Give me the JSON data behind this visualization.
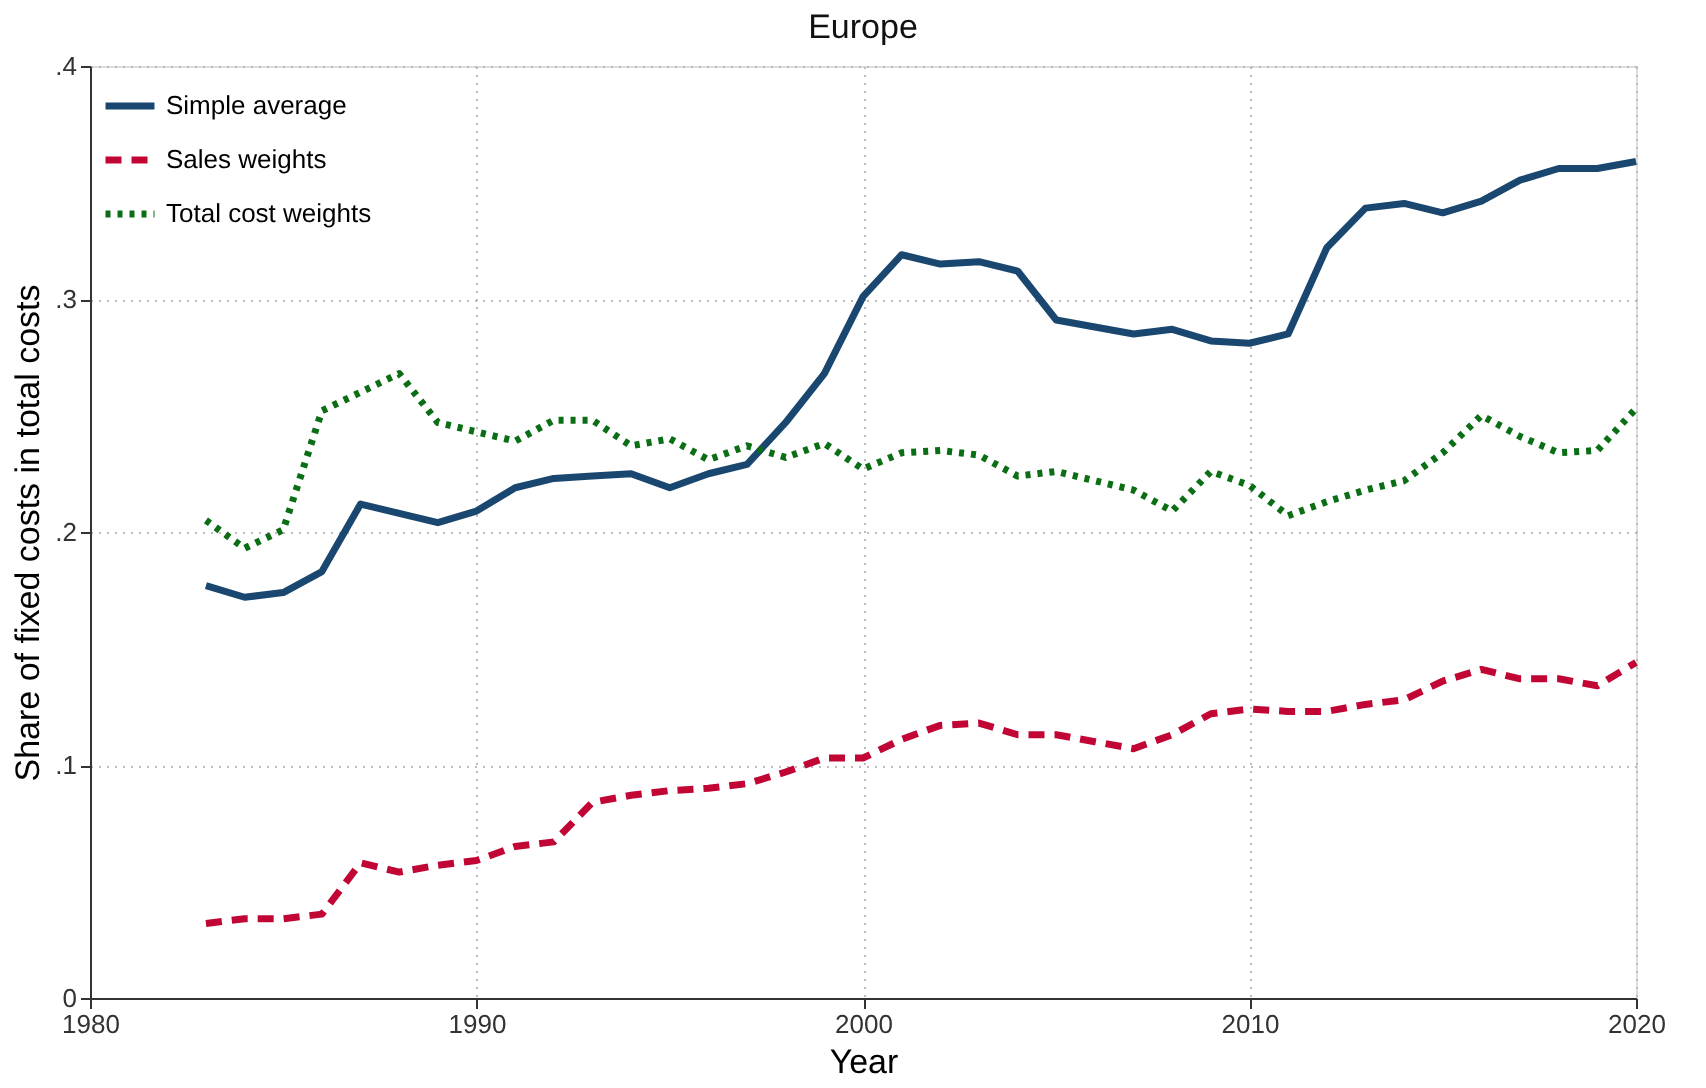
{
  "chart_data": {
    "type": "line",
    "title": "Europe",
    "xlabel": "Year",
    "ylabel": "Share of fixed costs in total costs",
    "x": [
      1983,
      1984,
      1985,
      1986,
      1987,
      1988,
      1989,
      1990,
      1991,
      1992,
      1993,
      1994,
      1995,
      1996,
      1997,
      1998,
      1999,
      2000,
      2001,
      2002,
      2003,
      2004,
      2005,
      2006,
      2007,
      2008,
      2009,
      2010,
      2011,
      2012,
      2013,
      2014,
      2015,
      2016,
      2017,
      2018,
      2019,
      2020
    ],
    "series": [
      {
        "name": "Simple average",
        "color": "#1a476f",
        "line_style": "solid",
        "values": [
          0.177,
          0.172,
          0.174,
          0.183,
          0.212,
          0.208,
          0.204,
          0.209,
          0.219,
          0.223,
          0.224,
          0.225,
          0.219,
          0.225,
          0.229,
          0.247,
          0.268,
          0.301,
          0.319,
          0.315,
          0.316,
          0.312,
          0.291,
          0.288,
          0.285,
          0.287,
          0.282,
          0.281,
          0.285,
          0.322,
          0.339,
          0.341,
          0.337,
          0.342,
          0.351,
          0.356,
          0.356,
          0.359
        ]
      },
      {
        "name": "Sales weights",
        "color": "#c10534",
        "line_style": "dashed",
        "values": [
          0.032,
          0.034,
          0.034,
          0.036,
          0.058,
          0.054,
          0.057,
          0.059,
          0.065,
          0.067,
          0.084,
          0.087,
          0.089,
          0.09,
          0.092,
          0.097,
          0.103,
          0.103,
          0.111,
          0.117,
          0.118,
          0.113,
          0.113,
          0.11,
          0.107,
          0.113,
          0.122,
          0.124,
          0.123,
          0.123,
          0.126,
          0.128,
          0.136,
          0.141,
          0.137,
          0.137,
          0.134,
          0.144
        ]
      },
      {
        "name": "Total cost weights",
        "color": "#0b6e14",
        "line_style": "dotted",
        "values": [
          0.205,
          0.193,
          0.201,
          0.252,
          0.26,
          0.268,
          0.247,
          0.243,
          0.239,
          0.248,
          0.248,
          0.237,
          0.24,
          0.231,
          0.237,
          0.232,
          0.238,
          0.227,
          0.234,
          0.235,
          0.233,
          0.224,
          0.226,
          0.222,
          0.218,
          0.209,
          0.226,
          0.22,
          0.207,
          0.213,
          0.218,
          0.222,
          0.234,
          0.25,
          0.241,
          0.234,
          0.235,
          0.253
        ]
      }
    ],
    "xlim": [
      1980,
      2020
    ],
    "xticks": [
      1980,
      1990,
      2000,
      2010,
      2020
    ],
    "ylim": [
      0,
      0.4
    ],
    "yticks": [
      0,
      {
        "value": 0.1,
        "label": ".1"
      },
      {
        "value": 0.2,
        "label": ".2"
      },
      {
        "value": 0.3,
        "label": ".3"
      },
      {
        "value": 0.4,
        "label": ".4"
      }
    ],
    "grid": true,
    "legend": "top left"
  }
}
